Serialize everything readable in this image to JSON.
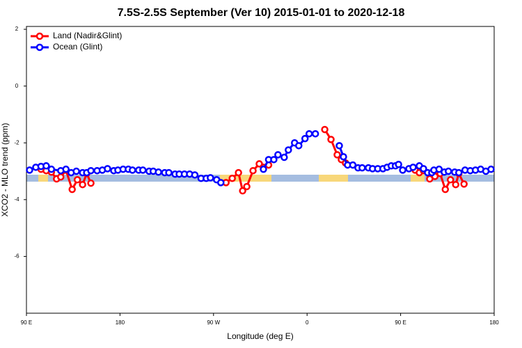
{
  "chart_data": {
    "type": "line",
    "title": "7.5S-2.5S September (Ver 10)   2015-01-01 to 2020-12-18",
    "xlabel": "Longitude (deg E)",
    "ylabel": "XCO2 - MLO trend (ppm)",
    "xlim": [
      90,
      540
    ],
    "xticks": [
      {
        "value": 90,
        "label": "90 E"
      },
      180,
      {
        "value": 270,
        "label": "90 W"
      },
      {
        "value": 360,
        "label": "0"
      },
      {
        "value": 450,
        "label": "90 E"
      },
      {
        "value": 540,
        "label": "180"
      }
    ],
    "ylim": [
      -8,
      2.1
    ],
    "yticks": [
      -6,
      -4,
      -2,
      0,
      2
    ],
    "legend": "top-left",
    "series": [
      {
        "name": "Land (Nadir&Glint)",
        "color": "#ff0000",
        "x": [
          104,
          109,
          114,
          119,
          123,
          128,
          134,
          139,
          144,
          148,
          152,
          240,
          282,
          288,
          294,
          298,
          302,
          308,
          314,
          318,
          323,
          395,
          377,
          383,
          389,
          393,
          397,
          430,
          464,
          468,
          472,
          478,
          483,
          488,
          493,
          498,
          503,
          506,
          511
        ],
        "values": [
          -2.93,
          -2.98,
          -3.03,
          -3.27,
          -3.2,
          -2.96,
          -3.64,
          -3.3,
          -3.47,
          -3.08,
          -3.42,
          null,
          -3.4,
          -3.25,
          -3.05,
          -3.69,
          -3.54,
          -2.98,
          -2.74,
          -2.86,
          -2.78,
          null,
          -1.53,
          -1.88,
          -2.42,
          -2.59,
          -2.71,
          null,
          -2.96,
          -3.05,
          -2.98,
          -3.27,
          -3.18,
          -3.08,
          -3.64,
          -3.3,
          -3.47,
          -3.08,
          -3.45
        ]
      },
      {
        "name": "Ocean (Glint)",
        "color": "#0000ff",
        "x": [
          93,
          99,
          104,
          109,
          114,
          123,
          128,
          133,
          138,
          144,
          148,
          152,
          158,
          163,
          168,
          174,
          178,
          183,
          188,
          192,
          198,
          202,
          208,
          212,
          217,
          223,
          227,
          233,
          237,
          242,
          247,
          252,
          258,
          263,
          267,
          273,
          277,
          297,
          318,
          323,
          328,
          332,
          338,
          342,
          348,
          352,
          358,
          362,
          368,
          380,
          391,
          395,
          399,
          404,
          409,
          413,
          419,
          423,
          428,
          433,
          437,
          441,
          445,
          448,
          452,
          458,
          462,
          468,
          472,
          476,
          480,
          482,
          487,
          492,
          496,
          502,
          506,
          512,
          517,
          522,
          527,
          532,
          537
        ],
        "values": [
          -2.96,
          -2.86,
          -2.83,
          -2.81,
          -2.93,
          -2.98,
          -2.93,
          -3.05,
          -3.0,
          -3.05,
          -3.05,
          -2.98,
          -2.98,
          -2.96,
          -2.91,
          -2.98,
          -2.96,
          -2.93,
          -2.93,
          -2.96,
          -2.96,
          -2.96,
          -3.0,
          -3.0,
          -3.03,
          -3.05,
          -3.05,
          -3.1,
          -3.1,
          -3.1,
          -3.1,
          -3.13,
          -3.25,
          -3.25,
          -3.23,
          -3.3,
          -3.4,
          null,
          -2.93,
          -2.59,
          -2.59,
          -2.42,
          -2.51,
          -2.25,
          -2.0,
          -2.1,
          -1.85,
          -1.68,
          -1.68,
          null,
          -2.1,
          -2.49,
          -2.78,
          -2.78,
          -2.88,
          -2.88,
          -2.88,
          -2.91,
          -2.91,
          -2.91,
          -2.86,
          -2.81,
          -2.81,
          -2.76,
          -2.96,
          -2.91,
          -2.86,
          -2.81,
          -2.91,
          -3.05,
          -3.05,
          -2.96,
          -2.93,
          -3.03,
          -3.0,
          -3.03,
          -3.05,
          -2.96,
          -2.98,
          -2.96,
          -2.93,
          -3.0,
          -2.93
        ]
      }
    ]
  }
}
